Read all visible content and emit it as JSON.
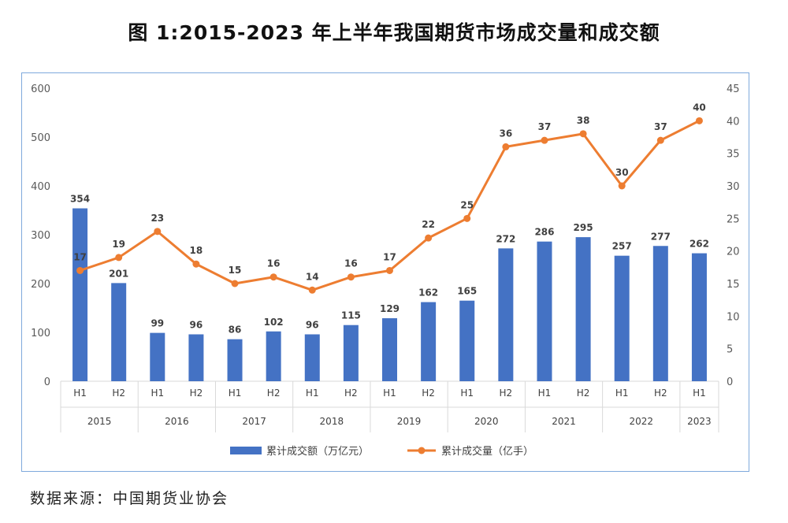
{
  "title": "图 1:2015-2023 年上半年我国期货市场成交量和成交额",
  "source": "数据来源：中国期货业协会",
  "chart_data": {
    "type": "bar+line",
    "categories": [
      "H1",
      "H2",
      "H1",
      "H2",
      "H1",
      "H2",
      "H1",
      "H2",
      "H1",
      "H2",
      "H1",
      "H2",
      "H1",
      "H2",
      "H1",
      "H2",
      "H1"
    ],
    "years": [
      "2015",
      "2016",
      "2017",
      "2018",
      "2019",
      "2020",
      "2021",
      "2022",
      "2023"
    ],
    "year_spans": [
      2,
      2,
      2,
      2,
      2,
      2,
      2,
      2,
      1
    ],
    "series": [
      {
        "name": "累计成交额（万亿元）",
        "type": "bar",
        "axis": "left",
        "color": "#4472c4",
        "values": [
          354,
          201,
          99,
          96,
          86,
          102,
          96,
          115,
          129,
          162,
          165,
          272,
          286,
          295,
          257,
          277,
          262
        ]
      },
      {
        "name": "累计成交量（亿手）",
        "type": "line",
        "axis": "right",
        "color": "#ed7d31",
        "values": [
          17,
          19,
          23,
          18,
          15,
          16,
          14,
          16,
          17,
          22,
          25,
          36,
          37,
          38,
          30,
          37,
          40
        ]
      }
    ],
    "line_labels": [
      "17",
      "19",
      "23",
      "18",
      "15",
      "16",
      "14",
      "16",
      "17",
      "22",
      "25",
      "36",
      "37",
      "38",
      "30",
      "37",
      "40"
    ],
    "left_axis": {
      "min": 0,
      "max": 600,
      "ticks": [
        "0",
        "100",
        "200",
        "300",
        "400",
        "500",
        "600"
      ]
    },
    "right_axis": {
      "min": 0,
      "max": 45,
      "ticks": [
        "0",
        "5",
        "10",
        "15",
        "20",
        "25",
        "30",
        "35",
        "40",
        "45"
      ]
    },
    "legend": [
      "累计成交额（万亿元）",
      "累计成交量（亿手）"
    ],
    "legend_position": "bottom"
  }
}
